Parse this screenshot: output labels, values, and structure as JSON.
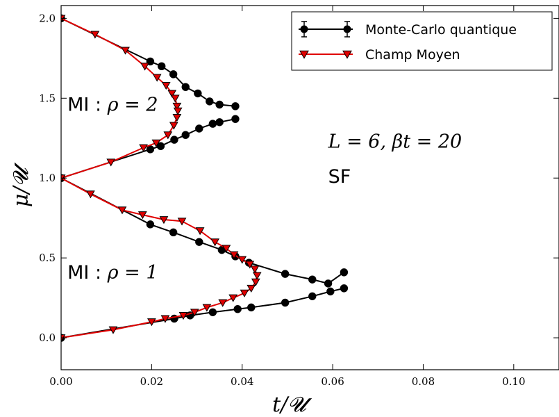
{
  "chart_data": {
    "type": "line",
    "xlabel": "t/𝓤",
    "ylabel": "μ/𝓤",
    "xlim": [
      0.0,
      0.11
    ],
    "ylim": [
      -0.2,
      2.08
    ],
    "xticks": [
      "0.00",
      "0.02",
      "0.04",
      "0.06",
      "0.08",
      "0.10"
    ],
    "yticks": [
      "0.0",
      "0.5",
      "1.0",
      "1.5",
      "2.0"
    ],
    "legend_position": "top-right",
    "grid": false,
    "series": [
      {
        "name": "Monte-Carlo quantique",
        "color": "#000000",
        "marker": "circle",
        "errorbars": true,
        "branches": [
          [
            [
              0.0,
              2.0
            ],
            [
              0.0197,
              1.73
            ],
            [
              0.0222,
              1.7
            ],
            [
              0.0248,
              1.65
            ],
            [
              0.0275,
              1.57
            ],
            [
              0.0302,
              1.53
            ],
            [
              0.0328,
              1.48
            ],
            [
              0.035,
              1.46
            ],
            [
              0.0385,
              1.45
            ]
          ],
          [
            [
              0.0385,
              1.37
            ],
            [
              0.035,
              1.35
            ],
            [
              0.0335,
              1.34
            ],
            [
              0.0305,
              1.31
            ],
            [
              0.0275,
              1.27
            ],
            [
              0.025,
              1.24
            ],
            [
              0.022,
              1.2
            ],
            [
              0.0197,
              1.18
            ],
            [
              0.0,
              1.0
            ]
          ],
          [
            [
              0.0,
              1.0
            ],
            [
              0.0197,
              0.71
            ],
            [
              0.0248,
              0.66
            ],
            [
              0.0305,
              0.6
            ],
            [
              0.0355,
              0.55
            ],
            [
              0.0385,
              0.51
            ],
            [
              0.0415,
              0.47
            ],
            [
              0.0495,
              0.4
            ],
            [
              0.0555,
              0.365
            ],
            [
              0.059,
              0.34
            ],
            [
              0.0625,
              0.41
            ]
          ],
          [
            [
              0.0625,
              0.31
            ],
            [
              0.0595,
              0.29
            ],
            [
              0.0555,
              0.26
            ],
            [
              0.0495,
              0.22
            ],
            [
              0.042,
              0.19
            ],
            [
              0.039,
              0.18
            ],
            [
              0.0335,
              0.16
            ],
            [
              0.0285,
              0.14
            ],
            [
              0.025,
              0.12
            ],
            [
              0.0,
              0.0
            ]
          ]
        ]
      },
      {
        "name": "Champ Moyen",
        "color": "#e00000",
        "marker": "triangle-down",
        "errorbars": false,
        "branches": [
          [
            [
              0.0,
              2.0
            ],
            [
              0.0075,
              1.9
            ],
            [
              0.0142,
              1.8
            ],
            [
              0.0185,
              1.7
            ],
            [
              0.0212,
              1.63
            ],
            [
              0.0232,
              1.58
            ],
            [
              0.0245,
              1.53
            ],
            [
              0.0252,
              1.5
            ],
            [
              0.0256,
              1.45
            ],
            [
              0.0258,
              1.42
            ],
            [
              0.0256,
              1.38
            ],
            [
              0.0249,
              1.33
            ],
            [
              0.0236,
              1.27
            ],
            [
              0.021,
              1.22
            ],
            [
              0.0182,
              1.19
            ],
            [
              0.011,
              1.1
            ],
            [
              0.0,
              1.0
            ]
          ],
          [
            [
              0.0,
              1.0
            ],
            [
              0.0065,
              0.9
            ],
            [
              0.0135,
              0.8
            ],
            [
              0.018,
              0.77
            ],
            [
              0.0227,
              0.74
            ],
            [
              0.0267,
              0.73
            ],
            [
              0.0307,
              0.67
            ],
            [
              0.034,
              0.6
            ],
            [
              0.0365,
              0.56
            ],
            [
              0.0382,
              0.52
            ],
            [
              0.04,
              0.49
            ],
            [
              0.0417,
              0.46
            ],
            [
              0.0428,
              0.43
            ],
            [
              0.0433,
              0.39
            ],
            [
              0.043,
              0.35
            ],
            [
              0.042,
              0.31
            ],
            [
              0.0405,
              0.28
            ],
            [
              0.038,
              0.25
            ],
            [
              0.0357,
              0.22
            ],
            [
              0.0322,
              0.19
            ],
            [
              0.0295,
              0.16
            ],
            [
              0.027,
              0.14
            ],
            [
              0.023,
              0.12
            ],
            [
              0.02,
              0.1
            ],
            [
              0.0115,
              0.05
            ],
            [
              0.0,
              0.0
            ]
          ]
        ]
      }
    ],
    "annotations": [
      {
        "sans": "MI : ",
        "math": "ρ = 2",
        "x": 0.0014,
        "y": 1.42
      },
      {
        "sans": "MI : ",
        "math": "ρ = 1",
        "x": 0.0014,
        "y": 0.37
      },
      {
        "sans": "",
        "math": "L = 6, βt = 20",
        "x": 0.059,
        "y": 1.19
      },
      {
        "sans": "SF",
        "math": "",
        "x": 0.059,
        "y": 0.97
      }
    ]
  }
}
